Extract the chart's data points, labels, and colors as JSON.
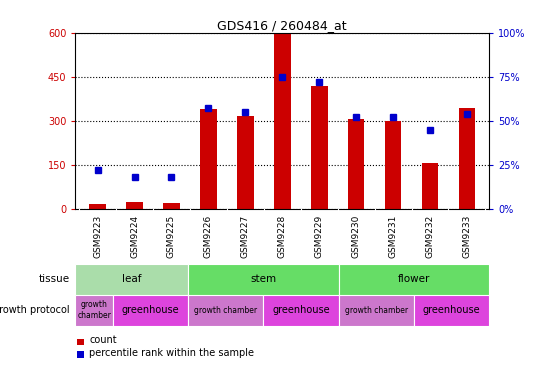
{
  "title": "GDS416 / 260484_at",
  "samples": [
    "GSM9223",
    "GSM9224",
    "GSM9225",
    "GSM9226",
    "GSM9227",
    "GSM9228",
    "GSM9229",
    "GSM9230",
    "GSM9231",
    "GSM9232",
    "GSM9233"
  ],
  "counts": [
    15,
    22,
    20,
    340,
    315,
    595,
    420,
    305,
    300,
    155,
    345
  ],
  "percentiles": [
    22,
    18,
    18,
    57,
    55,
    75,
    72,
    52,
    52,
    45,
    54
  ],
  "ylim_left": [
    0,
    600
  ],
  "ylim_right": [
    0,
    100
  ],
  "yticks_left": [
    0,
    150,
    300,
    450,
    600
  ],
  "ytick_labels_left": [
    "0",
    "150",
    "300",
    "450",
    "600"
  ],
  "yticks_right": [
    0,
    25,
    50,
    75,
    100
  ],
  "ytick_labels_right": [
    "0%",
    "25%",
    "50%",
    "75%",
    "100%"
  ],
  "bar_color": "#cc0000",
  "dot_color": "#0000cc",
  "tissue_groups": [
    {
      "label": "leaf",
      "start": 0,
      "end": 3,
      "color": "#aaddaa"
    },
    {
      "label": "stem",
      "start": 3,
      "end": 7,
      "color": "#55cc55"
    },
    {
      "label": "flower",
      "start": 7,
      "end": 11,
      "color": "#55cc55"
    }
  ],
  "protocol_groups": [
    {
      "label": "growth\nchamber",
      "start": 0,
      "end": 1,
      "color": "#cc77cc"
    },
    {
      "label": "greenhouse",
      "start": 1,
      "end": 3,
      "color": "#ee55ee"
    },
    {
      "label": "growth chamber",
      "start": 3,
      "end": 5,
      "color": "#cc77cc"
    },
    {
      "label": "greenhouse",
      "start": 5,
      "end": 7,
      "color": "#ee55ee"
    },
    {
      "label": "growth chamber",
      "start": 7,
      "end": 9,
      "color": "#cc77cc"
    },
    {
      "label": "greenhouse",
      "start": 9,
      "end": 11,
      "color": "#ee55ee"
    }
  ],
  "legend_count_label": "count",
  "legend_pct_label": "percentile rank within the sample",
  "tissue_label": "tissue",
  "protocol_label": "growth protocol",
  "sample_bg_color": "#cccccc",
  "tissue_leaf_color": "#aaddaa",
  "tissue_stem_color": "#55cc55",
  "tissue_flower_color": "#55cc55"
}
